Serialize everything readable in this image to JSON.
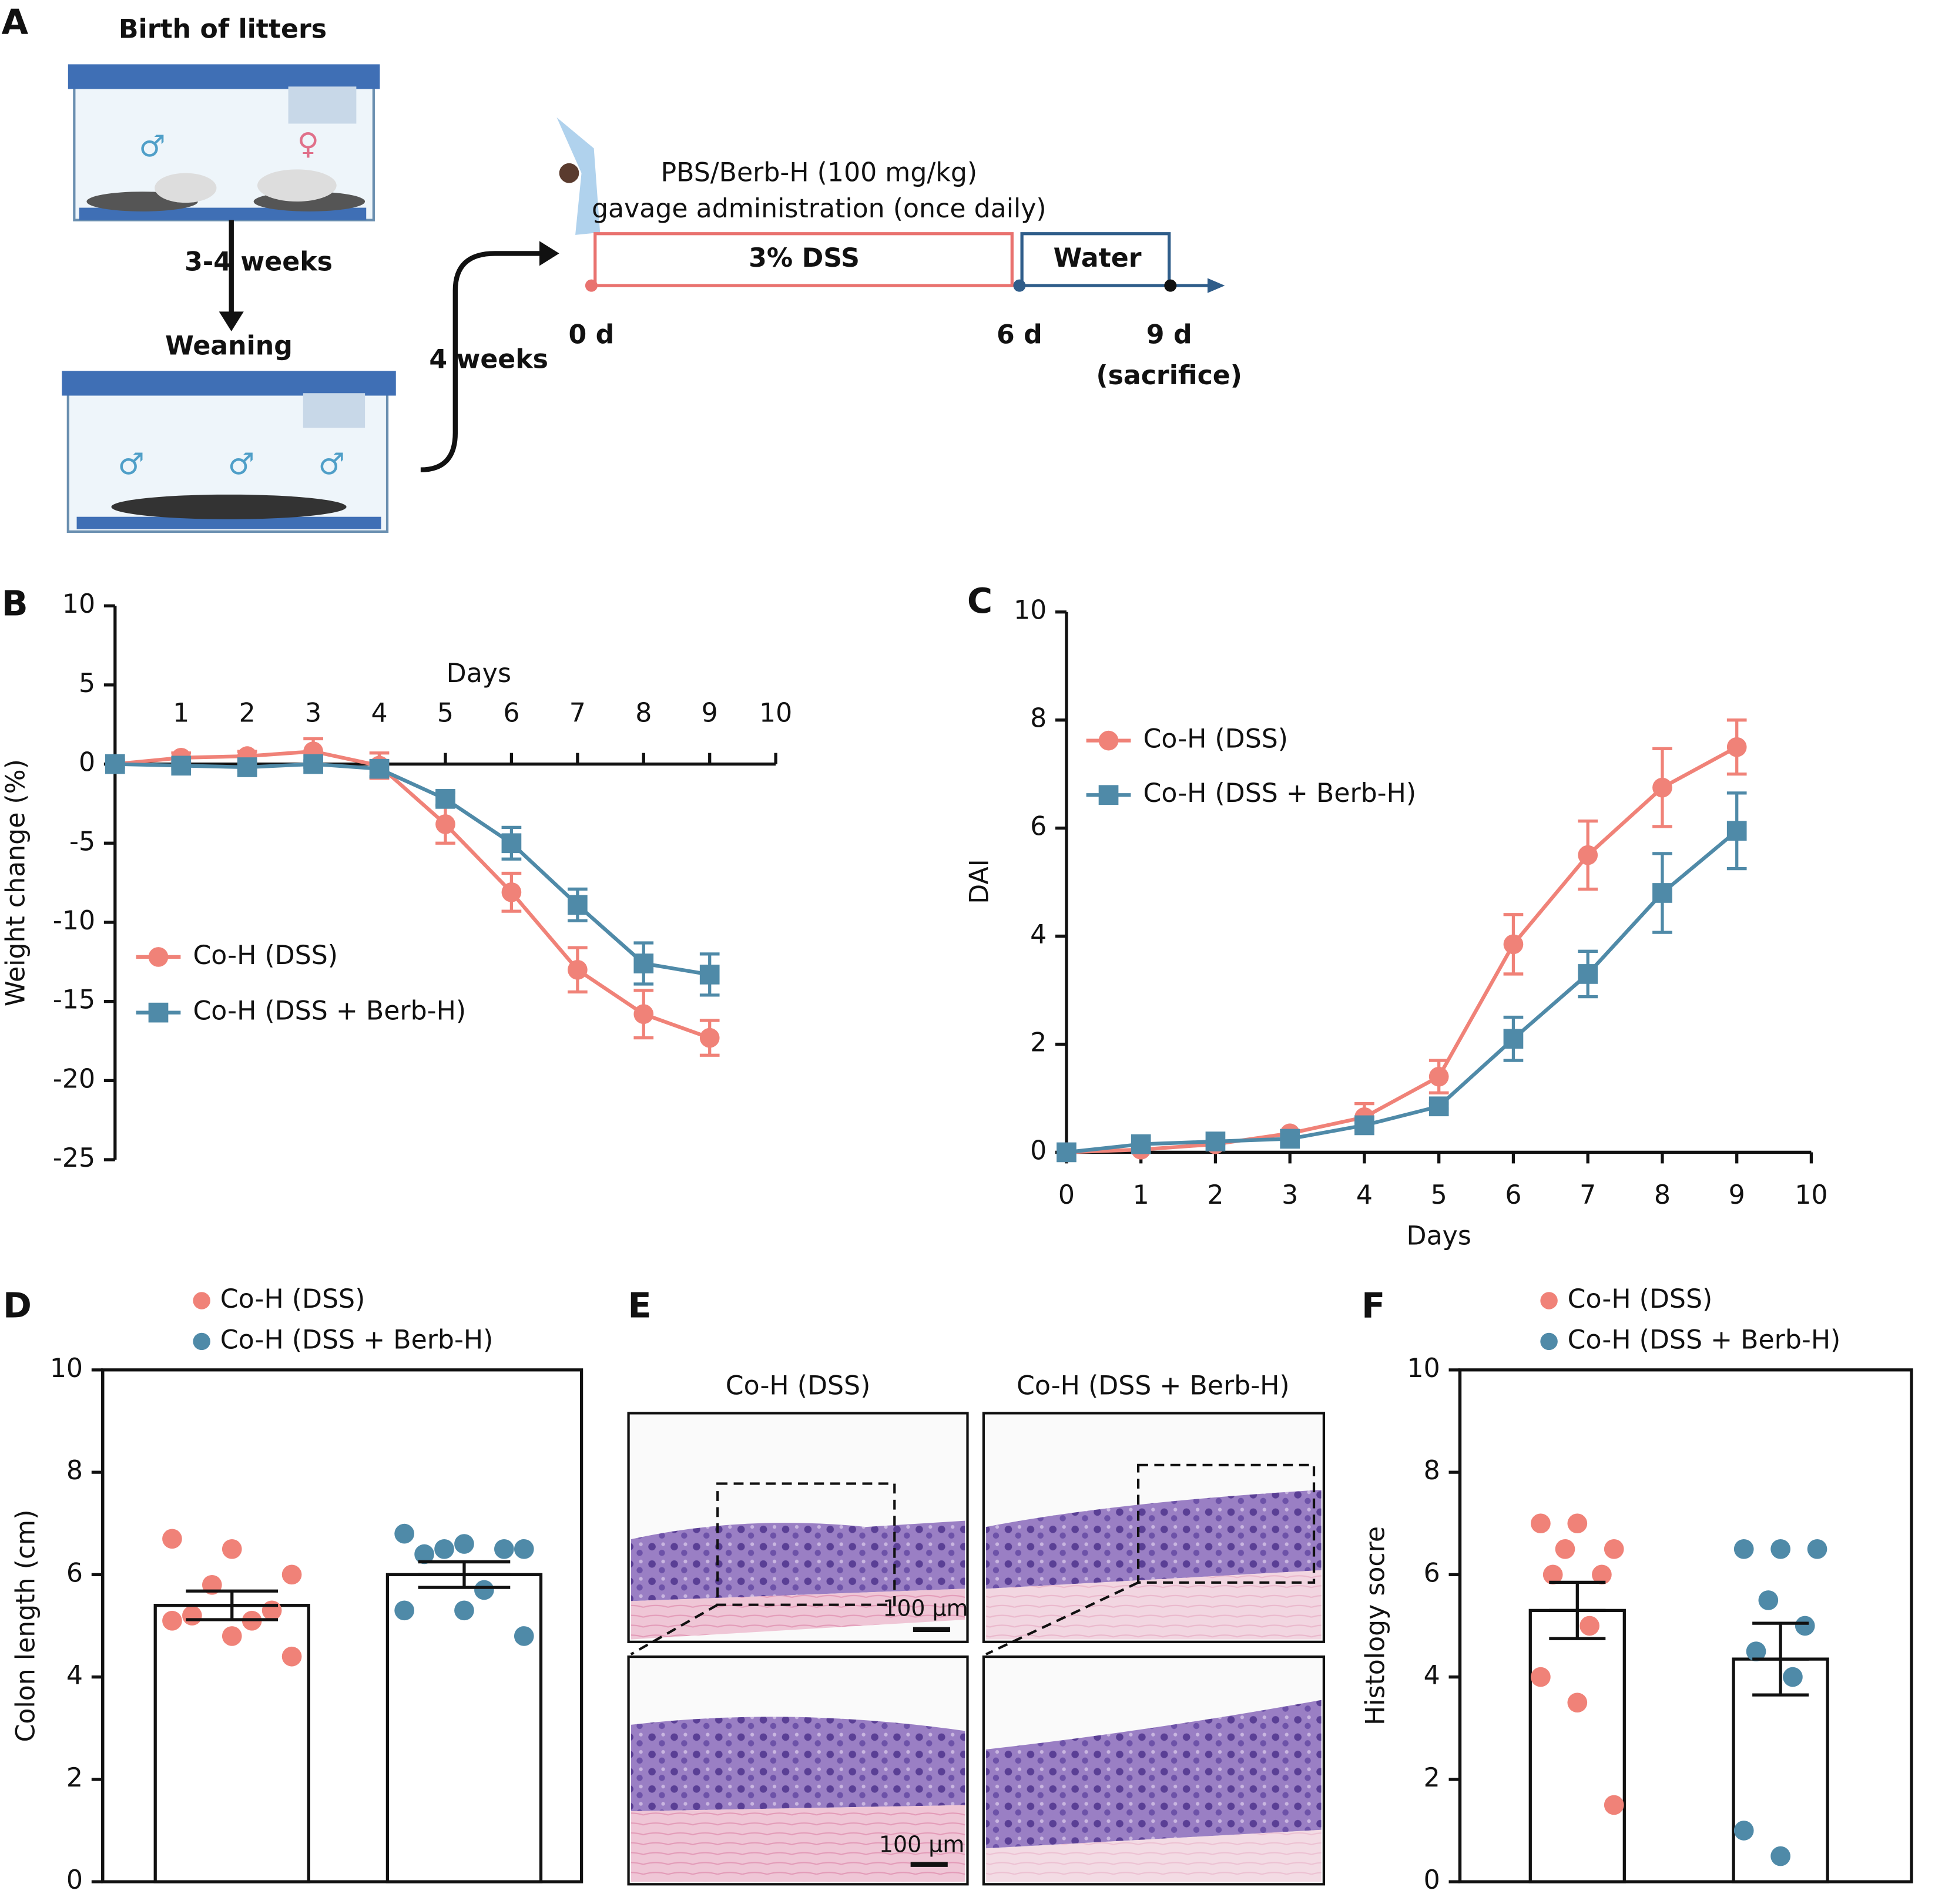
{
  "panel_labels": [
    "A",
    "B",
    "C",
    "D",
    "E",
    "F"
  ],
  "panel_a": {
    "birth": "Birth of litters",
    "weeks_1": "3-4 weeks",
    "weaning": "Weaning",
    "weeks_2": "4 weeks",
    "treatment": "PBS/Berb-H (100 mg/kg)",
    "route": "gavage administration (once daily)",
    "dss": "3% DSS",
    "water": "Water",
    "day_0": "0 d",
    "day_6": "6 d",
    "day_9": "9 d",
    "sacrifice": "(sacrifice)",
    "male": "♂",
    "female": "♀"
  },
  "panel_e": {
    "titles": [
      "Co-H (DSS)",
      "Co-H (DSS + Berb-H)"
    ],
    "scale_bar": "100 μm"
  },
  "chart_data": [
    {
      "type": "line",
      "xlabel": "Days",
      "ylabel": "Weight change (%)",
      "x": [
        0,
        1,
        2,
        3,
        4,
        5,
        6,
        7,
        8,
        9
      ],
      "xlim": [
        0,
        10
      ],
      "xticks": [
        1,
        2,
        3,
        4,
        5,
        6,
        7,
        8,
        9,
        10
      ],
      "ylim": [
        -25,
        10
      ],
      "yticks": [
        -25,
        -20,
        -15,
        -10,
        -5,
        0,
        5,
        10
      ],
      "series": [
        {
          "name": "Co-H (DSS)",
          "color": "#f08278",
          "marker": "circle",
          "values": [
            0,
            0.4,
            0.5,
            0.8,
            -0.1,
            -3.8,
            -8.1,
            -13,
            -15.8,
            -17.3
          ],
          "errors": [
            0.3,
            0.3,
            0.3,
            0.8,
            0.8,
            1.2,
            1.2,
            1.4,
            1.5,
            1.1
          ]
        },
        {
          "name": "Co-H (DSS + Berb-H)",
          "color": "#4f8aa8",
          "marker": "square",
          "values": [
            0,
            -0.1,
            -0.2,
            0,
            -0.3,
            -2.2,
            -5,
            -8.9,
            -12.6,
            -13.3
          ],
          "errors": [
            0.2,
            0.2,
            0.2,
            0.2,
            0.5,
            0.4,
            1,
            1,
            1.3,
            1.3
          ]
        }
      ]
    },
    {
      "type": "line",
      "xlabel": "Days",
      "ylabel": "DAI",
      "x": [
        0,
        1,
        2,
        3,
        4,
        5,
        6,
        7,
        8,
        9
      ],
      "xlim": [
        0,
        10
      ],
      "xticks": [
        0,
        1,
        2,
        3,
        4,
        5,
        6,
        7,
        8,
        9,
        10
      ],
      "ylim": [
        0,
        10
      ],
      "yticks": [
        0,
        2,
        4,
        6,
        8,
        10
      ],
      "series": [
        {
          "name": "Co-H (DSS)",
          "color": "#f08278",
          "marker": "circle",
          "values": [
            0,
            0.05,
            0.15,
            0.35,
            0.65,
            1.4,
            3.85,
            5.5,
            6.75,
            7.5
          ],
          "errors": [
            0,
            0,
            0,
            0.05,
            0.25,
            0.3,
            0.55,
            0.63,
            0.72,
            0.5
          ]
        },
        {
          "name": "Co-H (DSS + Berb-H)",
          "color": "#4f8aa8",
          "marker": "square",
          "values": [
            0,
            0.15,
            0.2,
            0.25,
            0.5,
            0.85,
            2.1,
            3.3,
            4.8,
            5.95
          ],
          "errors": [
            0,
            0,
            0,
            0,
            0.05,
            0.05,
            0.4,
            0.42,
            0.73,
            0.7
          ]
        }
      ]
    },
    {
      "type": "bar",
      "ylabel": "Colon length (cm)",
      "categories": [
        "Co-H (DSS)",
        "Co-H (DSS + Berb-H)"
      ],
      "colors": [
        "#f08278",
        "#4f8aa8"
      ],
      "values": [
        5.4,
        6.0
      ],
      "errors": [
        0.28,
        0.25
      ],
      "points": [
        [
          6.7,
          6.5,
          6.0,
          5.8,
          5.3,
          5.2,
          5.1,
          5.1,
          4.8,
          4.4
        ],
        [
          6.8,
          6.6,
          6.5,
          6.5,
          6.5,
          6.4,
          5.7,
          5.3,
          5.3,
          4.8
        ]
      ],
      "ylim": [
        0,
        10
      ],
      "yticks": [
        0,
        2,
        4,
        6,
        8,
        10
      ]
    },
    {
      "type": "bar",
      "ylabel": "Histology socre",
      "categories": [
        "Co-H (DSS)",
        "Co-H (DSS + Berb-H)"
      ],
      "colors": [
        "#f08278",
        "#4f8aa8"
      ],
      "values": [
        5.3,
        4.35
      ],
      "errors": [
        0.55,
        0.7
      ],
      "points": [
        [
          7,
          7,
          6.5,
          6.5,
          6,
          6,
          5,
          4,
          3.5,
          1.5
        ],
        [
          6.5,
          6.5,
          6.5,
          5.5,
          5,
          4.5,
          4,
          1,
          0.5
        ]
      ],
      "ylim": [
        0,
        10
      ],
      "yticks": [
        0,
        2,
        4,
        6,
        8,
        10
      ]
    }
  ]
}
